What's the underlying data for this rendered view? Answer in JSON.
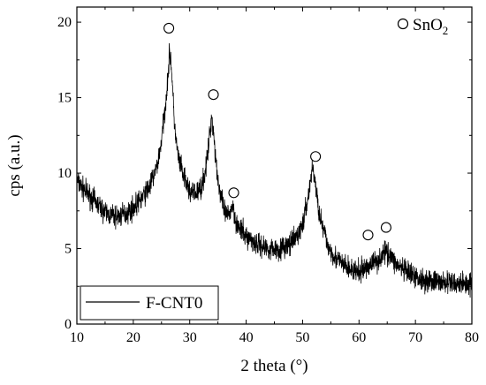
{
  "chart_data": {
    "type": "line",
    "title": "",
    "xlabel": "2 theta (°)",
    "ylabel": "cps (a.u.)",
    "xlim": [
      10,
      80
    ],
    "ylim": [
      0,
      21
    ],
    "x_ticks": [
      "10",
      "20",
      "30",
      "40",
      "50",
      "60",
      "70",
      "80"
    ],
    "y_ticks": [
      "0",
      "5",
      "10",
      "15",
      "20"
    ],
    "grid": false,
    "legend": {
      "placement": "bottom-left",
      "entries": [
        "F-CNT0"
      ]
    },
    "marker_key": {
      "label": "SnO",
      "subscript": "2",
      "symbol": "open-circle",
      "placement": "top-right"
    },
    "series": [
      {
        "name": "F-CNT0",
        "color": "#000000",
        "noise_amplitude": 0.75,
        "x": [
          10,
          11,
          12,
          13,
          14,
          15,
          16,
          17,
          18,
          19,
          20,
          21,
          22,
          23,
          24,
          24.5,
          25,
          25.5,
          26,
          26.4,
          26.6,
          26.8,
          27.2,
          27.6,
          28,
          29,
          30,
          31,
          32,
          32.6,
          33.2,
          33.6,
          33.9,
          34.2,
          34.6,
          35,
          35.5,
          36,
          36.5,
          37,
          37.5,
          37.8,
          38.2,
          38.8,
          40,
          42,
          44,
          46,
          48,
          49,
          50,
          50.6,
          51.2,
          51.6,
          51.8,
          52.1,
          52.6,
          53.4,
          54.5,
          56,
          58,
          60,
          61.5,
          62.5,
          63.5,
          64.5,
          65,
          65.5,
          66.5,
          68,
          70,
          72,
          74,
          76,
          78,
          80
        ],
        "y": [
          9.5,
          9.0,
          8.6,
          8.2,
          7.8,
          7.4,
          7.2,
          7.1,
          7.2,
          7.4,
          7.7,
          8.1,
          8.6,
          9.2,
          10.2,
          11.0,
          12.2,
          13.8,
          15.8,
          17.8,
          17.8,
          16.8,
          13.8,
          12.0,
          11.0,
          9.6,
          8.8,
          8.6,
          9.0,
          9.8,
          11.2,
          12.8,
          13.8,
          12.8,
          11.0,
          9.6,
          8.4,
          7.6,
          7.2,
          7.2,
          7.9,
          7.6,
          6.8,
          6.3,
          5.8,
          5.3,
          5.0,
          5.0,
          5.3,
          5.8,
          6.6,
          7.6,
          9.0,
          10.0,
          10.4,
          9.8,
          8.2,
          6.6,
          5.2,
          4.3,
          3.7,
          3.4,
          3.8,
          4.1,
          4.3,
          4.7,
          4.8,
          4.6,
          4.0,
          3.5,
          3.1,
          2.9,
          2.8,
          2.7,
          2.7,
          2.7
        ]
      }
    ],
    "peak_markers": [
      {
        "x": 26.3,
        "y": 19.6
      },
      {
        "x": 34.2,
        "y": 15.2
      },
      {
        "x": 37.8,
        "y": 8.7
      },
      {
        "x": 52.3,
        "y": 11.1
      },
      {
        "x": 61.6,
        "y": 5.9
      },
      {
        "x": 64.8,
        "y": 6.4
      }
    ]
  }
}
